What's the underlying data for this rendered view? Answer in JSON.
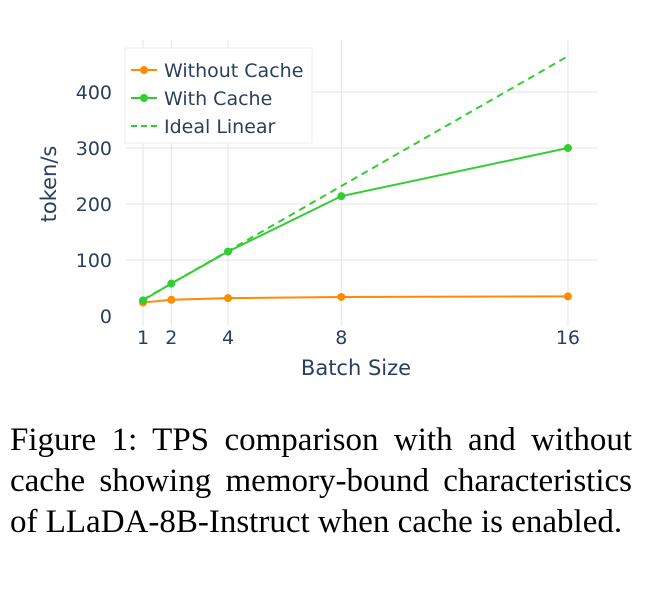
{
  "chart_data": {
    "type": "line",
    "xlabel": "Batch Size",
    "ylabel": "token/s",
    "x": [
      1,
      2,
      4,
      8,
      16
    ],
    "xticks": [
      1,
      2,
      4,
      8,
      16
    ],
    "yticks": [
      0,
      100,
      200,
      300,
      400
    ],
    "ylim": [
      -18,
      490
    ],
    "xlim": [
      0.4,
      17.1
    ],
    "grid": true,
    "legend_position": "top-left",
    "series": [
      {
        "name": "Without Cache",
        "values": [
          24,
          29,
          32,
          34,
          35
        ],
        "color": "#ff8c00",
        "style": "solid-markers"
      },
      {
        "name": "With Cache",
        "values": [
          28,
          58,
          115,
          214,
          300
        ],
        "color": "#32cd32",
        "style": "solid-markers"
      },
      {
        "name": "Ideal Linear",
        "values": [
          29,
          58,
          116,
          232,
          464
        ],
        "color": "#32cd32",
        "style": "dashed"
      }
    ]
  },
  "caption": "Figure 1:  TPS comparison with and without cache showing memory-bound characteristics of LLaDA-8B-Instruct when cache is enabled."
}
